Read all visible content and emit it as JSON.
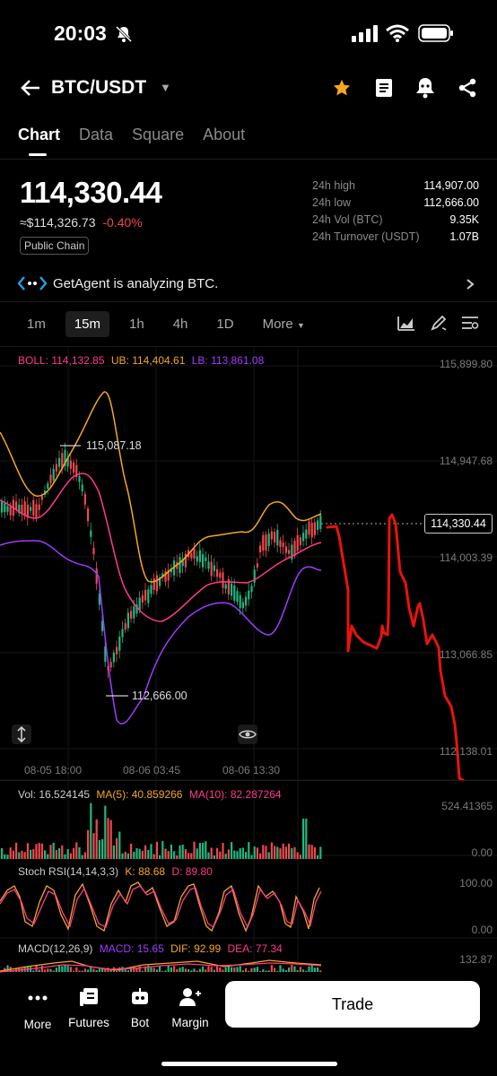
{
  "status_bar": {
    "time": "20:03"
  },
  "header": {
    "pair": "BTC/USDT"
  },
  "tabs": [
    "Chart",
    "Data",
    "Square",
    "About"
  ],
  "ticker": {
    "last_price": "114,330.44",
    "fiat_price": "≈$114,326.73",
    "change": "-0.40%",
    "chip": "Public Chain"
  },
  "stats": [
    {
      "label": "24h high",
      "value": "114,907.00"
    },
    {
      "label": "24h low",
      "value": "112,666.00"
    },
    {
      "label": "24h Vol (BTC)",
      "value": "9.35K"
    },
    {
      "label": "24h Turnover (USDT)",
      "value": "1.07B"
    }
  ],
  "agent": {
    "text": "GetAgent is analyzing BTC."
  },
  "timeframes": {
    "items": [
      "1m",
      "15m",
      "1h",
      "4h",
      "1D"
    ],
    "more": "More",
    "selected": "15m"
  },
  "boll": {
    "label": "BOLL: 114,132.85",
    "ub": "UB: 114,404.61",
    "lb": "LB: 113,861.08"
  },
  "price_axis": [
    "115,899.80",
    "114,947.68",
    "114,003.39",
    "113,066.85",
    "112,138.01"
  ],
  "time_axis": [
    "08-05 18:00",
    "08-06 03:45",
    "08-06 13:30"
  ],
  "annotations": {
    "high": "115,087.18",
    "low": "112,666.00",
    "current": "114,330.44"
  },
  "volume": {
    "label": "Vol: 16.524145",
    "ma5": "MA(5): 40.859266",
    "ma10": "MA(10): 82.287264",
    "axis_top": "524.41365",
    "axis_bottom": "0.00"
  },
  "stoch": {
    "label": "Stoch RSI(14,14,3,3)",
    "k": "K: 88.68",
    "d": "D: 89.80",
    "axis_top": "100.00",
    "axis_bottom": "0.00"
  },
  "macd": {
    "label": "MACD(12,26,9)",
    "macd": "MACD: 15.65",
    "dif": "DIF: 92.99",
    "dea": "DEA: 77.34",
    "axis_top": "132.87"
  },
  "bottom_nav": [
    {
      "label": "More",
      "icon": "dots-icon"
    },
    {
      "label": "Futures",
      "icon": "futures-icon"
    },
    {
      "label": "Bot",
      "icon": "bot-icon"
    },
    {
      "label": "Margin",
      "icon": "margin-icon"
    }
  ],
  "trade_button": "Trade",
  "colors": {
    "accent_red": "#f0484d",
    "boll_mid": "#ff3a8c",
    "boll_ub": "#f5a623",
    "boll_lb": "#a03bff",
    "up": "#1fb77f",
    "down": "#f0484d",
    "drawing": "#e8140c"
  }
}
